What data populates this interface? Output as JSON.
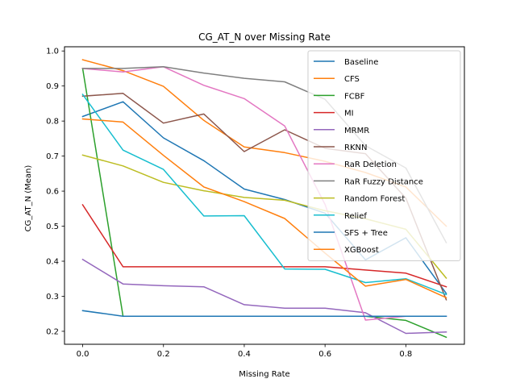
{
  "chart_data": {
    "type": "line",
    "title": "CG_AT_N over Missing Rate",
    "xlabel": "Missing Rate",
    "ylabel": "CG_AT_N (Mean)",
    "xlim": [
      -0.045,
      0.945
    ],
    "ylim": [
      0.163,
      1.012
    ],
    "xticks": [
      0.0,
      0.2,
      0.4,
      0.6,
      0.8
    ],
    "xtick_labels": [
      "0.0",
      "0.2",
      "0.4",
      "0.6",
      "0.8"
    ],
    "yticks": [
      0.2,
      0.3,
      0.4,
      0.5,
      0.6,
      0.7,
      0.8,
      0.9,
      1.0
    ],
    "ytick_labels": [
      "0.2",
      "0.3",
      "0.4",
      "0.5",
      "0.6",
      "0.7",
      "0.8",
      "0.9",
      "1.0"
    ],
    "grid": false,
    "legend_position": "top-right",
    "x": [
      0.0,
      0.1,
      0.2,
      0.3,
      0.4,
      0.5,
      0.6,
      0.7,
      0.8,
      0.9
    ],
    "series": [
      {
        "name": "Baseline",
        "color": "#1f77b4",
        "values": [
          0.813,
          0.855,
          0.752,
          0.687,
          0.606,
          0.576,
          0.537,
          0.404,
          0.467,
          0.308
        ]
      },
      {
        "name": "CFS",
        "color": "#ff7f0e",
        "values": [
          0.975,
          0.944,
          0.899,
          0.802,
          0.726,
          0.71,
          0.685,
          0.653,
          0.612,
          0.5
        ]
      },
      {
        "name": "FCBF",
        "color": "#2ca02c",
        "values": [
          0.95,
          0.243,
          0.243,
          0.243,
          0.243,
          0.243,
          0.243,
          0.243,
          0.231,
          0.183
        ]
      },
      {
        "name": "MI",
        "color": "#d62728",
        "values": [
          0.561,
          0.384,
          0.384,
          0.384,
          0.384,
          0.384,
          0.384,
          0.375,
          0.366,
          0.327
        ]
      },
      {
        "name": "MRMR",
        "color": "#9467bd",
        "values": [
          0.405,
          0.335,
          0.33,
          0.327,
          0.276,
          0.266,
          0.266,
          0.253,
          0.194,
          0.198
        ]
      },
      {
        "name": "RKNN",
        "color": "#8c564b",
        "values": [
          0.871,
          0.879,
          0.794,
          0.82,
          0.713,
          0.775,
          0.722,
          0.707,
          0.58,
          0.29
        ]
      },
      {
        "name": "RaR Deletion",
        "color": "#e377c2",
        "values": [
          0.95,
          0.94,
          0.955,
          0.902,
          0.864,
          0.786,
          0.562,
          0.232,
          0.243,
          0.243
        ]
      },
      {
        "name": "RaR Fuzzy Distance",
        "color": "#7f7f7f",
        "values": [
          0.95,
          0.95,
          0.955,
          0.937,
          0.922,
          0.912,
          0.862,
          0.73,
          0.666,
          0.453
        ]
      },
      {
        "name": "Random Forest",
        "color": "#bcbd22",
        "values": [
          0.703,
          0.672,
          0.625,
          0.601,
          0.582,
          0.574,
          0.544,
          0.521,
          0.491,
          0.352
        ]
      },
      {
        "name": "Relief",
        "color": "#17becf",
        "values": [
          0.876,
          0.717,
          0.662,
          0.529,
          0.53,
          0.378,
          0.377,
          0.339,
          0.35,
          0.305
        ]
      },
      {
        "name": "SFS + Tree",
        "color": "#1f77b4",
        "values": [
          0.259,
          0.243,
          0.243,
          0.243,
          0.243,
          0.243,
          0.243,
          0.243,
          0.243,
          0.243
        ]
      },
      {
        "name": "XGBoost",
        "color": "#ff7f0e",
        "values": [
          0.806,
          0.797,
          0.702,
          0.612,
          0.57,
          0.522,
          0.423,
          0.329,
          0.348,
          0.296
        ]
      }
    ]
  }
}
